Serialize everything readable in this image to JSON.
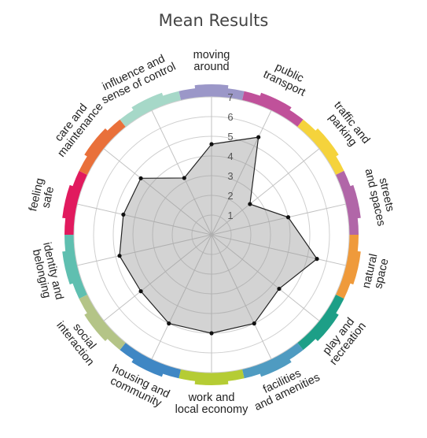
{
  "title": "Mean Results",
  "chart_data": {
    "type": "radar",
    "title": "Mean Results",
    "rmin": 0,
    "rmax": 7,
    "ticks": [
      1,
      2,
      3,
      4,
      5,
      6,
      7
    ],
    "grid": true,
    "categories": [
      {
        "lines": [
          "moving",
          "around"
        ],
        "color": "#9b97c8"
      },
      {
        "lines": [
          "public",
          "transport"
        ],
        "color": "#c0519a"
      },
      {
        "lines": [
          "traffic and",
          "parking"
        ],
        "color": "#f5d33c"
      },
      {
        "lines": [
          "streets",
          "and spaces"
        ],
        "color": "#b166a8"
      },
      {
        "lines": [
          "natural",
          "space"
        ],
        "color": "#ef9a3b"
      },
      {
        "lines": [
          "play and",
          "recreation"
        ],
        "color": "#1d9f87"
      },
      {
        "lines": [
          "facilities",
          "and amenities"
        ],
        "color": "#4f9bc1"
      },
      {
        "lines": [
          "work and",
          "local economy"
        ],
        "color": "#b5cc34"
      },
      {
        "lines": [
          "housing and",
          "community"
        ],
        "color": "#3f87c4"
      },
      {
        "lines": [
          "social",
          "interaction"
        ],
        "color": "#b4c487"
      },
      {
        "lines": [
          "identity and",
          "belonging"
        ],
        "color": "#5fbfb0"
      },
      {
        "lines": [
          "feeling",
          "safe"
        ],
        "color": "#e11a5e"
      },
      {
        "lines": [
          "care and",
          "maintenance"
        ],
        "color": "#e9703a"
      },
      {
        "lines": [
          "influence and",
          "sense of control"
        ],
        "color": "#a6d8c8"
      }
    ],
    "series": [
      {
        "values": [
          4.6,
          5.5,
          2.5,
          4.0,
          5.5,
          4.4,
          5.0,
          5.0,
          5.0,
          4.6,
          4.8,
          4.6,
          4.6,
          3.2
        ]
      }
    ]
  }
}
